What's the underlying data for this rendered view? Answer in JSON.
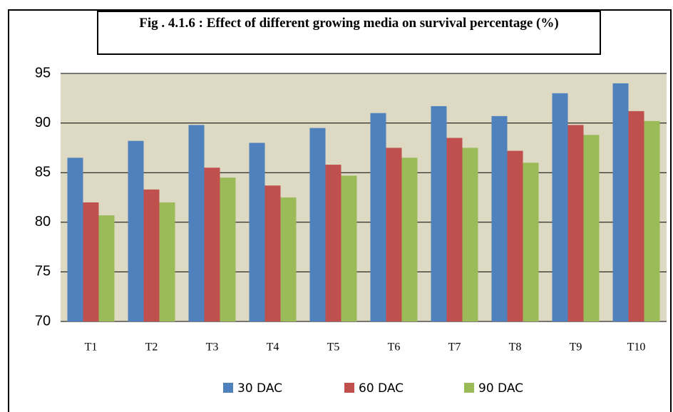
{
  "chart_data": {
    "type": "bar",
    "title": "Fig . 4.1.6 : Effect of different growing media on survival percentage (%)",
    "categories": [
      "T1",
      "T2",
      "T3",
      "T4",
      "T5",
      "T6",
      "T7",
      "T8",
      "T9",
      "T10"
    ],
    "series": [
      {
        "name": "30 DAC",
        "color": "#4f81bd",
        "values": [
          86.5,
          88.2,
          89.8,
          88,
          89.5,
          91,
          91.7,
          90.7,
          93,
          94
        ]
      },
      {
        "name": "60 DAC",
        "color": "#c0504d",
        "values": [
          82,
          83.3,
          85.5,
          83.7,
          85.8,
          87.5,
          88.5,
          87.2,
          89.8,
          91.2
        ]
      },
      {
        "name": "90 DAC",
        "color": "#9bbb59",
        "values": [
          80.7,
          82,
          84.5,
          82.5,
          84.7,
          86.5,
          87.5,
          86,
          88.8,
          90.2
        ]
      }
    ],
    "ylim": [
      70,
      95
    ],
    "yticks": [
      70,
      75,
      80,
      85,
      90,
      95
    ],
    "grid": true,
    "legend": "bottom"
  }
}
